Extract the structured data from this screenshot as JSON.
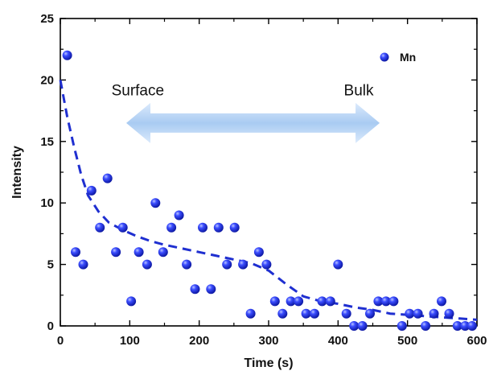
{
  "chart_data": {
    "type": "scatter",
    "title": "",
    "xlabel": "Time (s)",
    "ylabel": "Intensity",
    "xlim": [
      0,
      600
    ],
    "ylim": [
      0,
      25
    ],
    "xticks": [
      0,
      100,
      200,
      300,
      400,
      500,
      600
    ],
    "yticks": [
      0,
      5,
      10,
      15,
      20,
      25
    ],
    "grid": false,
    "legend": {
      "position": "top-right",
      "entries": [
        "Mn"
      ]
    },
    "series": [
      {
        "name": "Mn",
        "kind": "scatter",
        "color": "#1f2fd0",
        "points": [
          [
            10,
            22
          ],
          [
            22,
            6
          ],
          [
            33,
            5
          ],
          [
            45,
            11
          ],
          [
            57,
            8
          ],
          [
            68,
            12
          ],
          [
            80,
            6
          ],
          [
            90,
            8
          ],
          [
            102,
            2
          ],
          [
            113,
            6
          ],
          [
            125,
            5
          ],
          [
            137,
            10
          ],
          [
            148,
            6
          ],
          [
            160,
            8
          ],
          [
            171,
            9
          ],
          [
            182,
            5
          ],
          [
            194,
            3
          ],
          [
            205,
            8
          ],
          [
            217,
            3
          ],
          [
            228,
            8
          ],
          [
            240,
            5
          ],
          [
            251,
            8
          ],
          [
            263,
            5
          ],
          [
            274,
            1
          ],
          [
            286,
            6
          ],
          [
            297,
            5
          ],
          [
            309,
            2
          ],
          [
            320,
            1
          ],
          [
            332,
            2
          ],
          [
            343,
            2
          ],
          [
            354,
            1
          ],
          [
            366,
            1
          ],
          [
            377,
            2
          ],
          [
            389,
            2
          ],
          [
            400,
            5
          ],
          [
            412,
            1
          ],
          [
            423,
            0
          ],
          [
            435,
            0
          ],
          [
            446,
            1
          ],
          [
            458,
            2
          ],
          [
            469,
            2
          ],
          [
            480,
            2
          ],
          [
            492,
            0
          ],
          [
            503,
            1
          ],
          [
            515,
            1
          ],
          [
            526,
            0
          ],
          [
            538,
            1
          ],
          [
            549,
            2
          ],
          [
            560,
            1
          ],
          [
            572,
            0
          ],
          [
            583,
            0
          ],
          [
            593,
            0
          ]
        ]
      },
      {
        "name": "",
        "kind": "fit-line",
        "style": "dashed",
        "color": "#1f2fd0",
        "points": [
          [
            0,
            20
          ],
          [
            10,
            17
          ],
          [
            20,
            14.5
          ],
          [
            30,
            12.3
          ],
          [
            40,
            10.6
          ],
          [
            55,
            9.3
          ],
          [
            70,
            8.4
          ],
          [
            90,
            7.8
          ],
          [
            110,
            7.3
          ],
          [
            130,
            6.9
          ],
          [
            150,
            6.6
          ],
          [
            175,
            6.3
          ],
          [
            200,
            6.0
          ],
          [
            225,
            5.7
          ],
          [
            250,
            5.4
          ],
          [
            275,
            5.1
          ],
          [
            300,
            4.5
          ],
          [
            325,
            3.4
          ],
          [
            350,
            2.4
          ],
          [
            375,
            2.0
          ],
          [
            400,
            1.8
          ],
          [
            425,
            1.5
          ],
          [
            450,
            1.3
          ],
          [
            475,
            1.0
          ],
          [
            500,
            0.9
          ],
          [
            525,
            0.8
          ],
          [
            550,
            0.7
          ],
          [
            575,
            0.6
          ],
          [
            600,
            0.5
          ]
        ]
      }
    ],
    "annotations": [
      {
        "text": "Surface",
        "x": 100,
        "y": 19
      },
      {
        "text": "Bulk",
        "x": 395,
        "y": 19
      }
    ],
    "arrow": {
      "type": "double-headed",
      "from": [
        95,
        16.5
      ],
      "to": [
        460,
        16.5
      ]
    }
  }
}
